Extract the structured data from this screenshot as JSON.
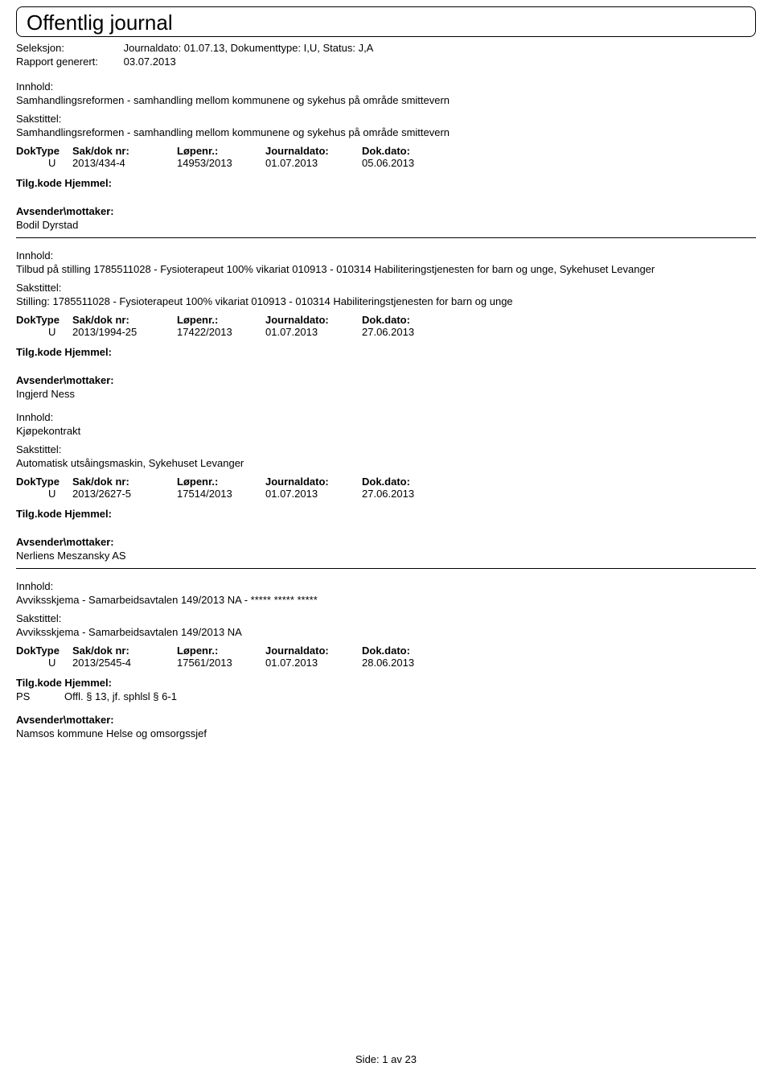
{
  "header": {
    "title": "Offentlig journal"
  },
  "meta": {
    "seleksjon_label": "Seleksjon:",
    "seleksjon_value": "Journaldato: 01.07.13, Dokumenttype: I,U, Status: J,A",
    "rapport_label": "Rapport generert:",
    "rapport_value": "03.07.2013"
  },
  "labels": {
    "innhold": "Innhold:",
    "sakstittel": "Sakstittel:",
    "doktype": "DokType",
    "sakdok": "Sak/dok nr:",
    "lopenr": "Løpenr.:",
    "journaldato": "Journaldato:",
    "dokdato": "Dok.dato:",
    "tilgkode": "Tilg.kode Hjemmel:",
    "avsender": "Avsender\\mottaker:"
  },
  "entries": [
    {
      "innhold": "Samhandlingsreformen - samhandling mellom kommunene og sykehus på område smittevern",
      "sakstittel": "Samhandlingsreformen - samhandling mellom kommunene og sykehus på område smittevern",
      "doktype": "U",
      "sakdok": "2013/434-4",
      "lopenr": "14953/2013",
      "journaldato": "01.07.2013",
      "dokdato": "05.06.2013",
      "tilg_code": "",
      "tilg_hjemmel": "",
      "avsender": "Bodil Dyrstad"
    },
    {
      "innhold": "Tilbud på stilling 1785511028 - Fysioterapeut 100% vikariat 010913 - 010314 Habiliteringstjenesten for barn og unge, Sykehuset Levanger",
      "sakstittel": "Stilling: 1785511028 - Fysioterapeut 100% vikariat 010913 - 010314 Habiliteringstjenesten for barn og unge",
      "doktype": "U",
      "sakdok": "2013/1994-25",
      "lopenr": "17422/2013",
      "journaldato": "01.07.2013",
      "dokdato": "27.06.2013",
      "tilg_code": "",
      "tilg_hjemmel": "",
      "avsender": "Ingjerd Ness"
    },
    {
      "innhold": "Kjøpekontrakt",
      "sakstittel": "Automatisk utsåingsmaskin, Sykehuset Levanger",
      "doktype": "U",
      "sakdok": "2013/2627-5",
      "lopenr": "17514/2013",
      "journaldato": "01.07.2013",
      "dokdato": "27.06.2013",
      "tilg_code": "",
      "tilg_hjemmel": "",
      "avsender": "Nerliens Meszansky AS"
    },
    {
      "innhold": "Avviksskjema - Samarbeidsavtalen 149/2013 NA - ***** ***** *****",
      "sakstittel": "Avviksskjema - Samarbeidsavtalen 149/2013 NA",
      "doktype": "U",
      "sakdok": "2013/2545-4",
      "lopenr": "17561/2013",
      "journaldato": "01.07.2013",
      "dokdato": "28.06.2013",
      "tilg_code": "PS",
      "tilg_hjemmel": "Offl. § 13, jf. sphlsl § 6-1",
      "avsender": "Namsos kommune Helse og omsorgssjef"
    }
  ],
  "footer": {
    "side_label": "Side:",
    "page": "1",
    "av": "av",
    "total": "23"
  }
}
